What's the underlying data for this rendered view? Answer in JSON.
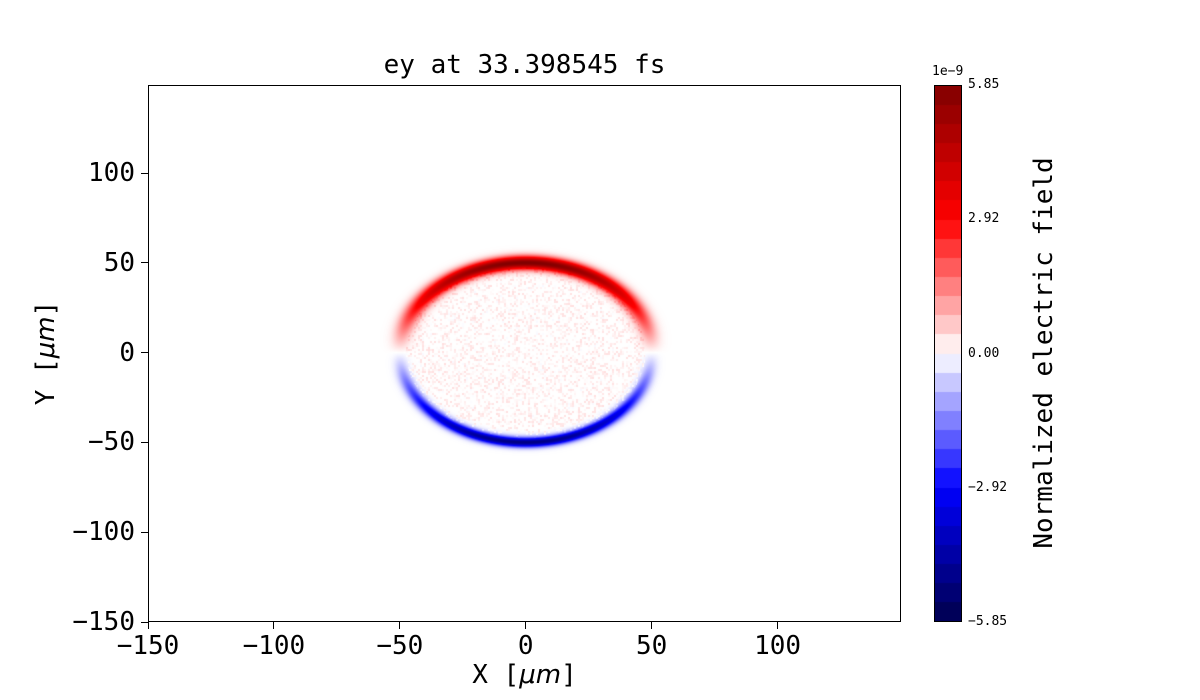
{
  "title": "ey at 33.398545 fs",
  "axes": {
    "xlabel_prefix": "X [",
    "xlabel_math": "μm",
    "xlabel_suffix": "]",
    "ylabel_prefix": "Y [",
    "ylabel_math": "μm",
    "ylabel_suffix": "]"
  },
  "chart_data": {
    "type": "heatmap",
    "title": "ey at 33.398545 fs",
    "xlabel": "X [μm]",
    "ylabel": "Y [μm]",
    "xlim": [
      -150,
      149
    ],
    "ylim": [
      -150,
      149
    ],
    "xticks": [
      -150,
      -100,
      -50,
      0,
      50,
      100
    ],
    "yticks": [
      -150,
      -100,
      -50,
      0,
      50,
      100
    ],
    "grid": false,
    "colormap": "seismic",
    "colorbar": {
      "label": "Normalized electric field",
      "offset_text": "1e−9",
      "tick_values": [
        5.85,
        2.92,
        0,
        -2.92,
        -5.85
      ],
      "tick_labels": [
        "5.85",
        "2.92",
        "0.00",
        "−2.92",
        "−5.85"
      ],
      "vmin": -5.85e-09,
      "vmax": 5.85e-09
    },
    "field": {
      "description": "2D map of normalized electric field ey: thin ring of radius ~50 μm centered at (0,0). Upper semicircular arc is positive (red), peaking near +5.85e-9 at the top; lower arc is negative (blue), peaking near −5.85e-9 at the bottom; amplitude varies as sin(polar angle) so it vanishes at the left/right sides (y≈0). Disk interior is filled with faint low-amplitude positive (pink) speckle noise.",
      "ring_radius_um": 50,
      "ring_width_um": 5,
      "center_um": [
        0,
        0
      ],
      "peak_value": 5.85e-09
    }
  }
}
